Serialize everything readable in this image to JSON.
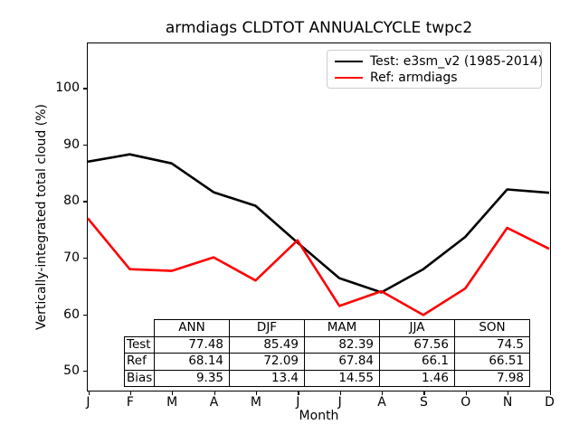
{
  "chart_data": {
    "type": "line",
    "title": "armdiags CLDTOT ANNUALCYCLE twpc2",
    "xlabel": "Month",
    "ylabel": "Vertically-integrated total cloud (%)",
    "x_tick_labels": [
      "J",
      "F",
      "M",
      "A",
      "M",
      "J",
      "J",
      "A",
      "S",
      "O",
      "N",
      "D"
    ],
    "y_ticks": [
      50,
      60,
      70,
      80,
      90,
      100
    ],
    "xlim": [
      0,
      11
    ],
    "ylim": [
      46.6,
      107.8
    ],
    "grid": false,
    "legend_position": "upper right",
    "series": [
      {
        "name": "Test: e3sm_v2 (1985-2014)",
        "color": "#000000",
        "values": [
          86.9,
          88.2,
          86.6,
          81.5,
          79.1,
          72.6,
          66.3,
          63.8,
          67.9,
          73.6,
          82.0,
          81.4
        ]
      },
      {
        "name": "Ref: armdiags",
        "color": "#ff0000",
        "values": [
          76.9,
          67.9,
          67.6,
          70.0,
          65.9,
          73.0,
          61.4,
          64.0,
          59.8,
          64.5,
          75.2,
          71.5
        ]
      }
    ],
    "stats_table": {
      "columns": [
        "ANN",
        "DJF",
        "MAM",
        "JJA",
        "SON"
      ],
      "rows": [
        {
          "label": "Test",
          "values": [
            "77.48",
            "85.49",
            "82.39",
            "67.56",
            "74.5"
          ]
        },
        {
          "label": "Ref",
          "values": [
            "68.14",
            "72.09",
            "67.84",
            "66.1",
            "66.51"
          ]
        },
        {
          "label": "Bias",
          "values": [
            "9.35",
            "13.4",
            "14.55",
            "1.46",
            "7.98"
          ]
        }
      ]
    }
  }
}
